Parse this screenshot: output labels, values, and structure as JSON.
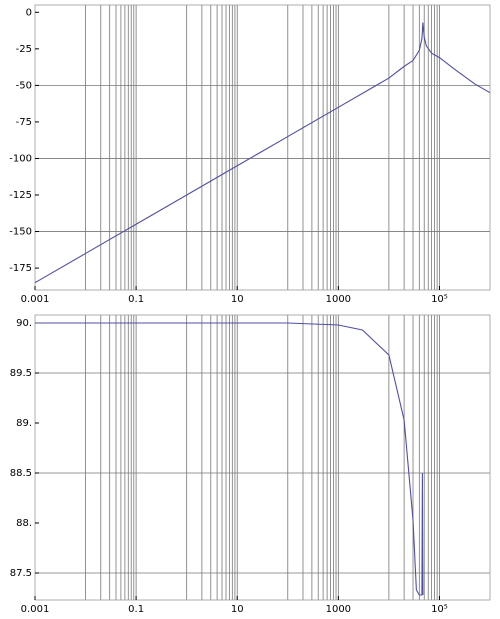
{
  "chart_data": [
    {
      "type": "line",
      "log_x": true,
      "grid": true,
      "x": [
        0.001,
        0.01,
        0.1,
        1,
        10,
        100,
        1000,
        10000,
        20000,
        30000,
        40000,
        45000,
        47000,
        50000,
        55000,
        70000,
        100000,
        200000,
        500000,
        1000000
      ],
      "series": [
        {
          "name": "magnitude",
          "color": "#4f4fa3",
          "values": [
            -185,
            -165,
            -145,
            -125,
            -105,
            -85,
            -65,
            -45,
            -37,
            -33,
            -26,
            -18,
            -7,
            -17,
            -23,
            -28,
            -31,
            -39,
            -49,
            -55
          ]
        }
      ],
      "xlim": [
        0.001,
        1000000
      ],
      "ylim": [
        -190,
        5
      ],
      "xticks": [
        0.001,
        0.1,
        10,
        1000,
        {
          "value": 100000,
          "label": "10⁵"
        }
      ],
      "yticks": [
        0,
        -25,
        -50,
        -75,
        -100,
        -125,
        -150,
        -175
      ],
      "xgrid": [
        0.01,
        0.02,
        0.03,
        0.04,
        0.05,
        0.06,
        0.07,
        0.08,
        0.09,
        0.1,
        1,
        2,
        3,
        4,
        5,
        6,
        7,
        8,
        9,
        10,
        100,
        200,
        300,
        400,
        500,
        600,
        700,
        800,
        900,
        1000,
        10000,
        20000,
        30000,
        40000,
        50000,
        60000,
        70000,
        80000,
        90000,
        100000
      ],
      "ygrid": [
        -50,
        -100,
        -150
      ]
    },
    {
      "type": "line",
      "log_x": true,
      "grid": true,
      "x": [
        0.001,
        0.01,
        0.1,
        1,
        10,
        100,
        1000,
        3000,
        10000,
        20000,
        30000,
        35000,
        40000,
        45000,
        46000,
        47000
      ],
      "series": [
        {
          "name": "phase",
          "color": "#4f4fa3",
          "values": [
            90,
            90,
            90,
            90,
            90,
            90,
            89.98,
            89.93,
            89.68,
            89.03,
            88.03,
            87.33,
            87.28,
            87.28,
            88.5,
            87.28
          ]
        }
      ],
      "xlim": [
        0.001,
        1000000
      ],
      "ylim": [
        87.23,
        90.08
      ],
      "xticks": [
        0.001,
        0.1,
        10,
        1000,
        {
          "value": 100000,
          "label": "10⁵"
        }
      ],
      "yticks": [
        {
          "value": 90,
          "label": "90."
        },
        89.5,
        {
          "value": 89,
          "label": "89."
        },
        88.5,
        {
          "value": 88,
          "label": "88."
        },
        87.5
      ],
      "xgrid": [
        0.01,
        0.02,
        0.03,
        0.04,
        0.05,
        0.06,
        0.07,
        0.08,
        0.09,
        0.1,
        1,
        2,
        3,
        4,
        5,
        6,
        7,
        8,
        9,
        10,
        100,
        200,
        300,
        400,
        500,
        600,
        700,
        800,
        900,
        1000,
        10000,
        20000,
        30000,
        40000,
        50000,
        60000,
        70000,
        80000,
        90000,
        100000
      ],
      "ygrid": [
        89.5,
        88.5,
        87.5
      ]
    }
  ]
}
